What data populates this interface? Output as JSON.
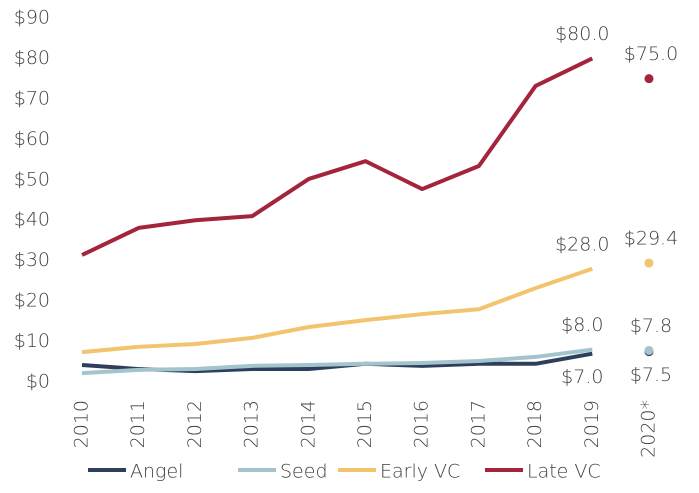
{
  "chart_data": {
    "type": "line",
    "categories": [
      "2010",
      "2011",
      "2012",
      "2013",
      "2014",
      "2015",
      "2016",
      "2017",
      "2018",
      "2019",
      "2020*"
    ],
    "series": [
      {
        "name": "Angel",
        "color": "#2e3f5c",
        "values": [
          4.2,
          3.2,
          2.7,
          3.2,
          3.2,
          4.5,
          4.0,
          4.5,
          4.5,
          7.0,
          7.5
        ],
        "value_labels": [
          null,
          null,
          null,
          null,
          null,
          null,
          null,
          null,
          null,
          "$7.0",
          "$7.5"
        ]
      },
      {
        "name": "Seed",
        "color": "#a3c4cc",
        "values": [
          2.2,
          3.0,
          3.2,
          4.0,
          4.2,
          4.5,
          4.7,
          5.2,
          6.2,
          8.0,
          7.8
        ],
        "value_labels": [
          null,
          null,
          null,
          null,
          null,
          null,
          null,
          null,
          null,
          "$8.0",
          "$7.8"
        ]
      },
      {
        "name": "Early VC",
        "color": "#f2c46d",
        "values": [
          7.4,
          8.7,
          9.4,
          10.9,
          13.6,
          15.3,
          16.8,
          18.0,
          23.2,
          28.0,
          29.4
        ],
        "value_labels": [
          null,
          null,
          null,
          null,
          null,
          null,
          null,
          null,
          null,
          "$28.0",
          "$29.4"
        ]
      },
      {
        "name": "Late VC",
        "color": "#a3243b",
        "values": [
          31.4,
          38.1,
          40.0,
          41.0,
          50.2,
          54.6,
          47.7,
          53.4,
          73.2,
          80.0,
          75.0
        ],
        "value_labels": [
          null,
          null,
          null,
          null,
          null,
          null,
          null,
          null,
          null,
          "$80.0",
          "$75.0"
        ]
      }
    ],
    "ylim": [
      0,
      90
    ],
    "yticks": [
      {
        "value": 0,
        "label": "$0"
      },
      {
        "value": 10,
        "label": "$10"
      },
      {
        "value": 20,
        "label": "$20"
      },
      {
        "value": 30,
        "label": "$30"
      },
      {
        "value": 40,
        "label": "$40"
      },
      {
        "value": 50,
        "label": "$50"
      },
      {
        "value": 60,
        "label": "$60"
      },
      {
        "value": 70,
        "label": "$70"
      },
      {
        "value": 80,
        "label": "$80"
      },
      {
        "value": 90,
        "label": "$90"
      }
    ],
    "grid": false,
    "legend": "bottom"
  }
}
